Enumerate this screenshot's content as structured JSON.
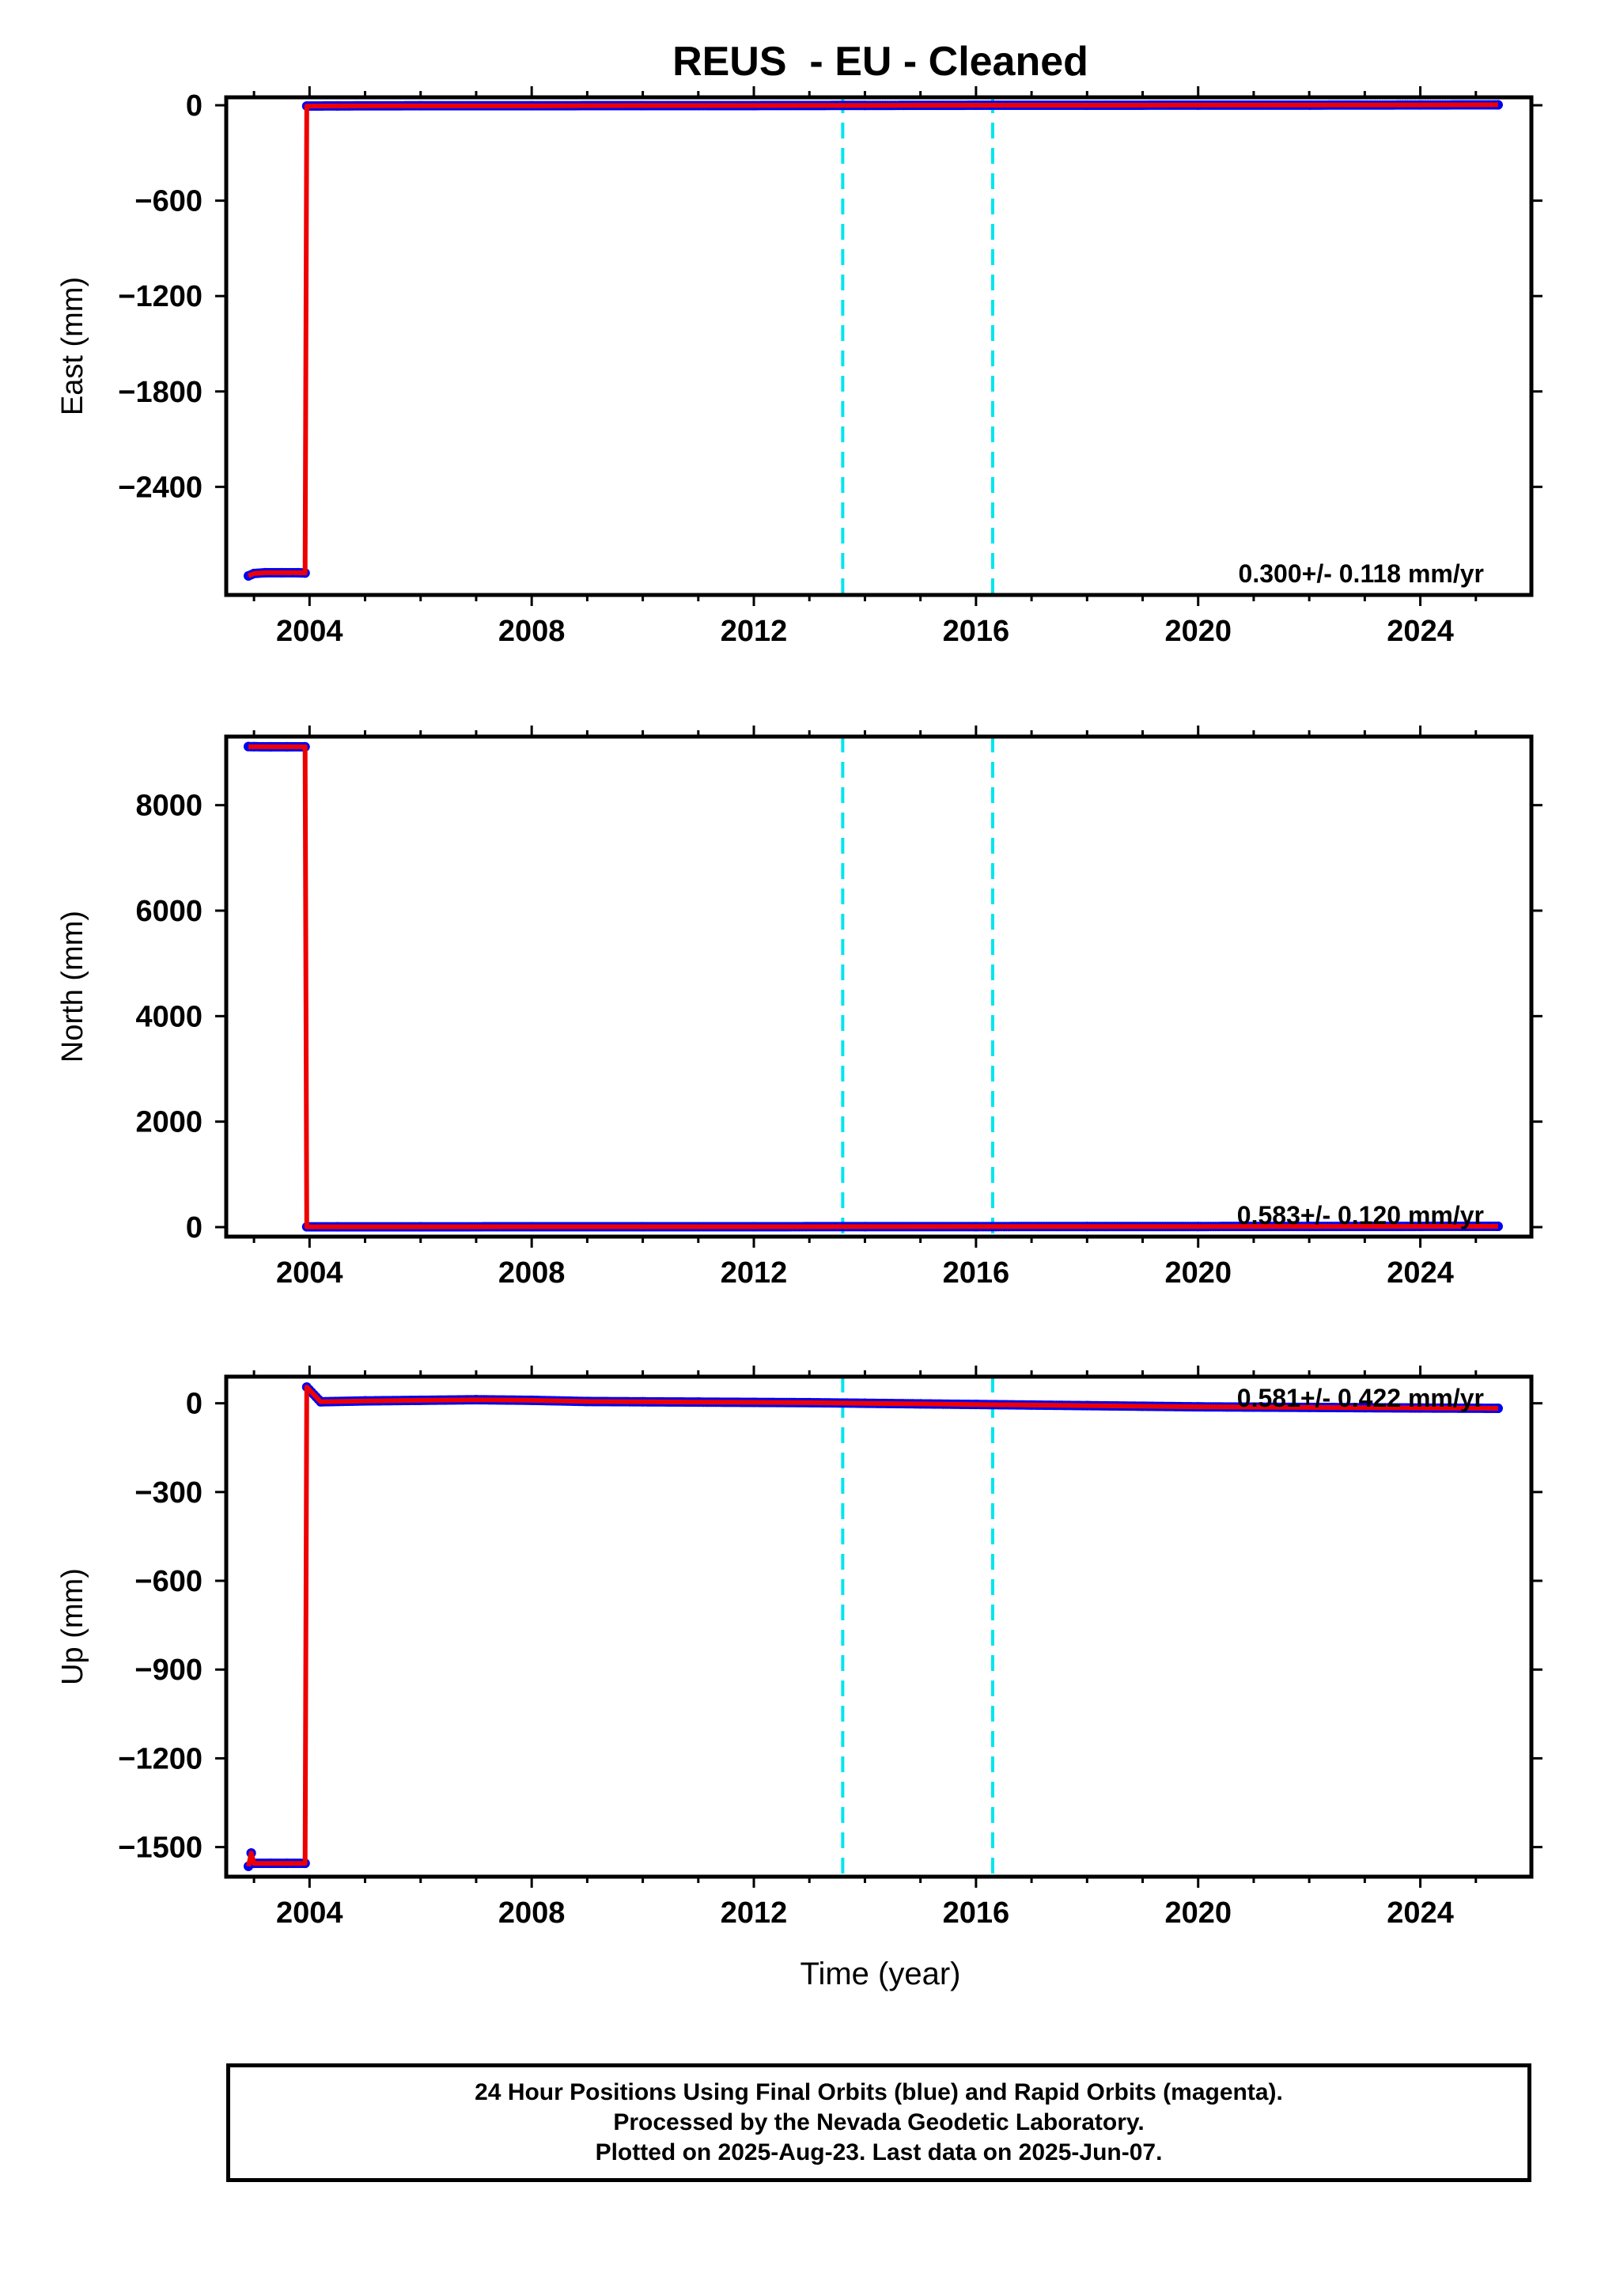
{
  "chart_data": {
    "type": "scatter",
    "title": "REUS  - EU - Cleaned",
    "xlabel": "Time (year)",
    "xlim": [
      2002.5,
      2026.0
    ],
    "x_ticks": [
      2004,
      2008,
      2012,
      2016,
      2020,
      2024
    ],
    "vertical_markers": [
      2013.6,
      2016.3
    ],
    "legend": "none",
    "grid": false,
    "panels": [
      {
        "ylabel": "East (mm)",
        "ylim": [
          -3080,
          50
        ],
        "y_ticks": [
          0,
          -600,
          -1200,
          -1800,
          -2400
        ],
        "rate_text": "0.300+/- 0.118 mm/yr",
        "series": [
          {
            "x": [
              2002.9,
              2003.0,
              2003.2,
              2003.5,
              2003.8,
              2003.92,
              2003.95,
              2004.5,
              2006,
              2008,
              2010,
              2012,
              2014,
              2016,
              2018,
              2020,
              2022,
              2024,
              2025.4
            ],
            "y": [
              -2960,
              -2945,
              -2940,
              -2940,
              -2940,
              -2942,
              -5,
              -4,
              -3,
              -3,
              -2,
              -2,
              -1,
              0,
              0,
              1,
              1,
              2,
              3
            ]
          }
        ]
      },
      {
        "ylabel": "North (mm)",
        "ylim": [
          -180,
          9300
        ],
        "y_ticks": [
          8000,
          6000,
          4000,
          2000,
          0
        ],
        "rate_text": "0.583+/- 0.120 mm/yr",
        "series": [
          {
            "x": [
              2002.9,
              2003.0,
              2003.3,
              2003.6,
              2003.92,
              2003.95,
              2004.5,
              2006,
              2008,
              2010,
              2012,
              2014,
              2016,
              2018,
              2020,
              2022,
              2024,
              2025.4
            ],
            "y": [
              9110,
              9108,
              9107,
              9107,
              9106,
              6,
              6,
              6,
              7,
              7,
              8,
              9,
              10,
              11,
              12,
              13,
              14,
              15
            ]
          }
        ]
      },
      {
        "ylabel": "Up (mm)",
        "ylim": [
          -1600,
          90
        ],
        "y_ticks": [
          0,
          -300,
          -600,
          -900,
          -1200,
          -1500
        ],
        "rate_text": "0.581+/- 0.422 mm/yr",
        "series": [
          {
            "x": [
              2002.9,
              2002.95,
              2003.0,
              2003.3,
              2003.6,
              2003.92,
              2003.95,
              2004.2,
              2005,
              2006,
              2007,
              2008,
              2009,
              2010,
              2011,
              2012,
              2013,
              2014,
              2015,
              2016,
              2017,
              2018,
              2019,
              2020,
              2021,
              2022,
              2023,
              2024,
              2025.4
            ],
            "y": [
              -1565,
              -1520,
              -1555,
              -1555,
              -1555,
              -1555,
              55,
              5,
              8,
              10,
              12,
              10,
              6,
              5,
              4,
              3,
              2,
              0,
              -2,
              -4,
              -6,
              -8,
              -10,
              -12,
              -13,
              -14,
              -15,
              -16,
              -17
            ]
          }
        ]
      }
    ]
  },
  "footer": {
    "line1": "24 Hour Positions Using Final Orbits (blue) and Rapid Orbits (magenta).",
    "line2": "Processed by the Nevada Geodetic Laboratory.",
    "line3": "Plotted on 2025-Aug-23. Last data on 2025-Jun-07."
  },
  "colors": {
    "points": "#0000ee",
    "fit_line": "#ee0000",
    "vertical_markers": "#00e5ee",
    "axes": "#000000"
  }
}
